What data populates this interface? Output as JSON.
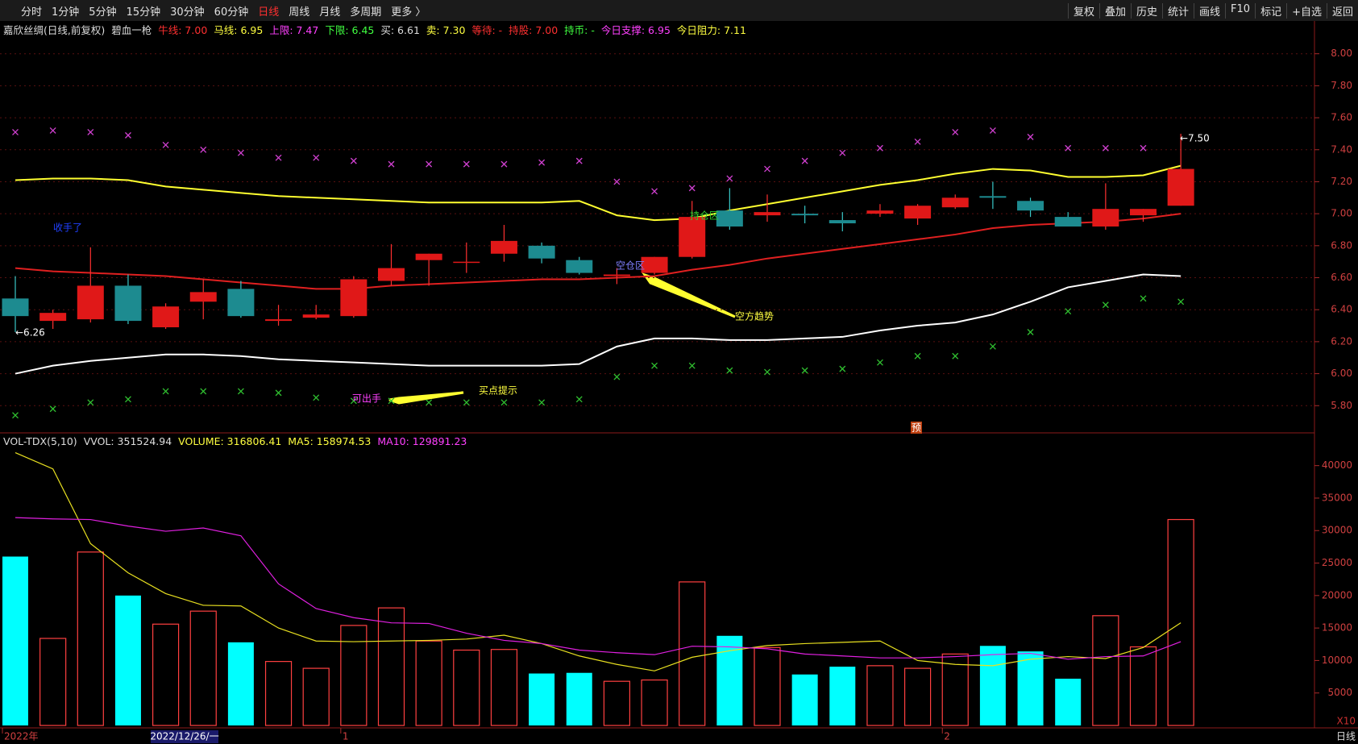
{
  "toolbar": {
    "periods": [
      "分时",
      "1分钟",
      "5分钟",
      "15分钟",
      "30分钟",
      "60分钟",
      "日线",
      "周线",
      "月线",
      "多周期",
      "更多 〉"
    ],
    "active_period": "日线",
    "tools": [
      "复权",
      "叠加",
      "历史",
      "统计",
      "画线",
      "F10",
      "标记",
      "+自选",
      "返回"
    ]
  },
  "status": "日线",
  "chart_data": [
    {
      "type": "candlestick",
      "header": [
        {
          "text": "嘉欣丝绸(日线,前复权)",
          "color": "#dddddd"
        },
        {
          "text": "碧血一枪",
          "color": "#dddddd"
        },
        {
          "text": "牛线: 7.00",
          "color": "#ff3030"
        },
        {
          "text": "马线: 6.95",
          "color": "#ffff40"
        },
        {
          "text": "上限: 7.47",
          "color": "#ff40ff"
        },
        {
          "text": "下限: 6.45",
          "color": "#40ff40"
        },
        {
          "text": "买: 6.61",
          "color": "#dddddd"
        },
        {
          "text": "卖: 7.30",
          "color": "#ffff40"
        },
        {
          "text": "等待: -",
          "color": "#ff3030"
        },
        {
          "text": "持股: 7.00",
          "color": "#ff3030"
        },
        {
          "text": "持币: -",
          "color": "#40ff40"
        },
        {
          "text": "今日支撑: 6.95",
          "color": "#ff40ff"
        },
        {
          "text": "今日阻力: 7.11",
          "color": "#ffff40"
        }
      ],
      "open": [
        6.47,
        6.33,
        6.34,
        6.55,
        6.29,
        6.45,
        6.53,
        6.33,
        6.35,
        6.36,
        6.58,
        6.71,
        6.7,
        6.75,
        6.8,
        6.71,
        6.61,
        6.63,
        6.73,
        7.02,
        6.99,
        7.0,
        6.96,
        7.0,
        6.97,
        7.04,
        7.11,
        7.08,
        6.98,
        6.92,
        6.99,
        7.05
      ],
      "high": [
        6.61,
        6.4,
        6.79,
        6.62,
        6.44,
        6.59,
        6.58,
        6.43,
        6.43,
        6.61,
        6.81,
        6.75,
        6.82,
        6.93,
        6.82,
        6.73,
        6.66,
        6.73,
        7.08,
        7.16,
        7.12,
        7.05,
        7.01,
        7.06,
        7.06,
        7.12,
        7.2,
        7.1,
        7.01,
        7.19,
        7.03,
        7.5
      ],
      "low": [
        6.26,
        6.28,
        6.32,
        6.31,
        6.28,
        6.34,
        6.35,
        6.3,
        6.34,
        6.35,
        6.55,
        6.55,
        6.63,
        6.7,
        6.69,
        6.62,
        6.56,
        6.62,
        6.72,
        6.9,
        6.95,
        6.94,
        6.89,
        6.98,
        6.93,
        7.03,
        7.03,
        6.98,
        6.92,
        6.9,
        6.95,
        7.05
      ],
      "close": [
        6.36,
        6.38,
        6.55,
        6.33,
        6.42,
        6.51,
        6.36,
        6.34,
        6.37,
        6.59,
        6.66,
        6.75,
        6.7,
        6.83,
        6.72,
        6.63,
        6.62,
        6.73,
        6.98,
        6.92,
        7.01,
        6.99,
        6.94,
        7.02,
        7.05,
        7.1,
        7.1,
        7.02,
        6.92,
        7.03,
        7.03,
        7.28
      ],
      "up_color": "#e01818",
      "down_color": "#1d8b90",
      "series": [
        {
          "style": "line",
          "color": "#ffff30",
          "values": [
            7.21,
            7.22,
            7.22,
            7.21,
            7.17,
            7.15,
            7.13,
            7.11,
            7.1,
            7.09,
            7.08,
            7.07,
            7.07,
            7.07,
            7.07,
            7.08,
            6.99,
            6.96,
            6.97,
            7.02,
            7.06,
            7.1,
            7.14,
            7.18,
            7.21,
            7.25,
            7.28,
            7.27,
            7.23,
            7.23,
            7.24,
            7.3
          ]
        },
        {
          "style": "line",
          "color": "#e02020",
          "values": [
            6.66,
            6.64,
            6.63,
            6.62,
            6.61,
            6.59,
            6.57,
            6.55,
            6.53,
            6.53,
            6.55,
            6.56,
            6.57,
            6.58,
            6.59,
            6.59,
            6.6,
            6.61,
            6.65,
            6.68,
            6.72,
            6.75,
            6.78,
            6.81,
            6.84,
            6.87,
            6.91,
            6.93,
            6.94,
            6.95,
            6.97,
            7.0
          ]
        },
        {
          "style": "line",
          "color": "#ffffff",
          "values": [
            6.0,
            6.05,
            6.08,
            6.1,
            6.12,
            6.12,
            6.11,
            6.09,
            6.08,
            6.07,
            6.06,
            6.05,
            6.05,
            6.05,
            6.05,
            6.06,
            6.17,
            6.22,
            6.22,
            6.21,
            6.21,
            6.22,
            6.23,
            6.27,
            6.3,
            6.32,
            6.37,
            6.45,
            6.54,
            6.58,
            6.62,
            6.61
          ]
        },
        {
          "style": "cross",
          "color": "#d040d0",
          "values": [
            7.51,
            7.52,
            7.51,
            7.49,
            7.43,
            7.4,
            7.38,
            7.35,
            7.35,
            7.33,
            7.31,
            7.31,
            7.31,
            7.31,
            7.32,
            7.33,
            7.2,
            7.14,
            7.16,
            7.22,
            7.28,
            7.33,
            7.38,
            7.41,
            7.45,
            7.51,
            7.52,
            7.48,
            7.41,
            7.41,
            7.41,
            null
          ]
        },
        {
          "style": "cross",
          "color": "#30c030",
          "values": [
            5.74,
            5.78,
            5.82,
            5.84,
            5.89,
            5.89,
            5.89,
            5.88,
            5.85,
            5.83,
            5.83,
            5.82,
            5.82,
            5.82,
            5.82,
            5.84,
            5.98,
            6.05,
            6.05,
            6.02,
            6.01,
            6.02,
            6.03,
            6.07,
            6.11,
            6.11,
            6.17,
            6.26,
            6.39,
            6.43,
            6.47,
            6.45
          ]
        }
      ],
      "ylim": [
        5.63,
        8.2
      ],
      "yticks": [
        {
          "value": 5.8,
          "label": "5.80"
        },
        {
          "value": 6,
          "label": "6.00"
        },
        {
          "value": 6.2,
          "label": "6.20"
        },
        {
          "value": 6.4,
          "label": "6.40"
        },
        {
          "value": 6.6,
          "label": "6.60"
        },
        {
          "value": 6.8,
          "label": "6.80"
        },
        {
          "value": 7,
          "label": "7.00"
        },
        {
          "value": 7.2,
          "label": "7.20"
        },
        {
          "value": 7.4,
          "label": "7.40"
        },
        {
          "value": 7.6,
          "label": "7.60"
        },
        {
          "value": 7.8,
          "label": "7.80"
        },
        {
          "value": 8,
          "label": "8.00"
        }
      ],
      "grid": true,
      "annotations": [
        {
          "text": "收手了",
          "color": "#2040ff"
        },
        {
          "text": "持仓区",
          "color": "#30d030"
        },
        {
          "text": "空仓区",
          "color": "#8080ff"
        },
        {
          "text": "空方趋势",
          "color": "#ffff40"
        },
        {
          "text": "可出手",
          "color": "#ff40ff"
        },
        {
          "text": "买点提示",
          "color": "#ffff40"
        },
        {
          "text": "←6.26",
          "color": "#ffffff"
        },
        {
          "text": "←7.50",
          "color": "#ffffff"
        },
        {
          "text": "预",
          "color": "#ffffff"
        }
      ]
    },
    {
      "type": "bar",
      "header": [
        {
          "text": "VOL-TDX(5,10)",
          "color": "#dddddd"
        },
        {
          "text": "VVOL: 351524.94",
          "color": "#dddddd"
        },
        {
          "text": "VOLUME: 316806.41",
          "color": "#ffff40"
        },
        {
          "text": "MA5: 158974.53",
          "color": "#ffff40"
        },
        {
          "text": "MA10: 129891.23",
          "color": "#ff40ff"
        }
      ],
      "categories": [
        "2022年",
        null,
        null,
        null,
        null,
        null,
        null,
        null,
        null,
        "1",
        null,
        null,
        null,
        null,
        null,
        null,
        null,
        null,
        null,
        null,
        null,
        null,
        null,
        null,
        null,
        "2",
        null,
        null,
        null,
        null,
        null,
        null
      ],
      "cursor_label": "2022/12/26/一",
      "values": [
        26000,
        13400,
        26700,
        20000,
        15600,
        17600,
        12800,
        9850,
        8800,
        15400,
        18100,
        13000,
        11600,
        11700,
        8000,
        8100,
        6800,
        7000,
        22100,
        13800,
        12000,
        7850,
        9050,
        9200,
        8800,
        11000,
        12250,
        11400,
        7200,
        16900,
        12100,
        31700
      ],
      "up_color": "#ff4040",
      "down_color": "#00ffff",
      "series": [
        {
          "name": "MA5",
          "color": "#e8e020",
          "values": [
            42000,
            39500,
            28000,
            23500,
            20300,
            18500,
            18400,
            15000,
            13000,
            12900,
            13000,
            13100,
            13300,
            13900,
            12600,
            10700,
            9400,
            8400,
            10500,
            11500,
            12300,
            12600,
            12800,
            13000,
            10000,
            9400,
            9200,
            10200,
            10600,
            10300,
            12000,
            15800
          ]
        },
        {
          "name": "MA10",
          "color": "#e020e0",
          "values": [
            32000,
            31800,
            31700,
            30700,
            29900,
            30400,
            29200,
            21800,
            18000,
            16600,
            15800,
            15700,
            14200,
            13100,
            12600,
            11600,
            11200,
            10900,
            12200,
            12100,
            11800,
            11000,
            10700,
            10400,
            10400,
            10600,
            10900,
            11100,
            10200,
            10600,
            10700,
            12900
          ]
        }
      ],
      "ylim": [
        0,
        44300
      ],
      "yticks": [
        5000,
        10000,
        15000,
        20000,
        25000,
        30000,
        35000,
        40000
      ],
      "unit_label": "X10"
    }
  ]
}
